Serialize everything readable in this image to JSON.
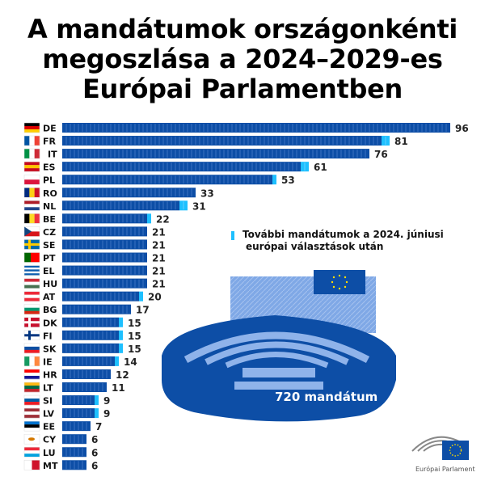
{
  "title": [
    "A mandátumok országonkénti",
    "megoszlása a 2024–2029-es",
    "Európai Parlamentben"
  ],
  "legend": {
    "line1": "További mandátumok a 2024. júniusi",
    "line2": "európai választások után",
    "color": "#1ec0ff"
  },
  "colors": {
    "base": "#0d4ea6",
    "additional": "#1ec0ff"
  },
  "total_label": "720 mandátum",
  "logo_text": "Európai Parlament",
  "chart_data": {
    "type": "bar",
    "orientation": "horizontal",
    "title": "A mandátumok országonkénti megoszlása a 2024–2029-es Európai Parlamentben",
    "categories": [
      "DE",
      "FR",
      "IT",
      "ES",
      "PL",
      "RO",
      "NL",
      "BE",
      "CZ",
      "SE",
      "PT",
      "EL",
      "HU",
      "AT",
      "BG",
      "DK",
      "FI",
      "SK",
      "IE",
      "HR",
      "LT",
      "SI",
      "LV",
      "EE",
      "CY",
      "LU",
      "MT"
    ],
    "values": [
      96,
      81,
      76,
      61,
      53,
      33,
      31,
      22,
      21,
      21,
      21,
      21,
      21,
      20,
      17,
      15,
      15,
      15,
      14,
      12,
      11,
      9,
      9,
      7,
      6,
      6,
      6
    ],
    "series": [
      {
        "name": "",
        "values": [
          96,
          79,
          76,
          59,
          52,
          33,
          29,
          21,
          21,
          21,
          21,
          21,
          21,
          19,
          17,
          14,
          14,
          14,
          13,
          12,
          11,
          8,
          8,
          7,
          6,
          6,
          6
        ]
      },
      {
        "name": "További mandátumok a 2024. júniusi európai választások után",
        "values": [
          0,
          2,
          0,
          2,
          1,
          0,
          2,
          1,
          0,
          0,
          0,
          0,
          0,
          1,
          0,
          1,
          1,
          1,
          1,
          0,
          0,
          1,
          1,
          0,
          0,
          0,
          0
        ]
      }
    ],
    "stacked": true,
    "grid": false
  }
}
